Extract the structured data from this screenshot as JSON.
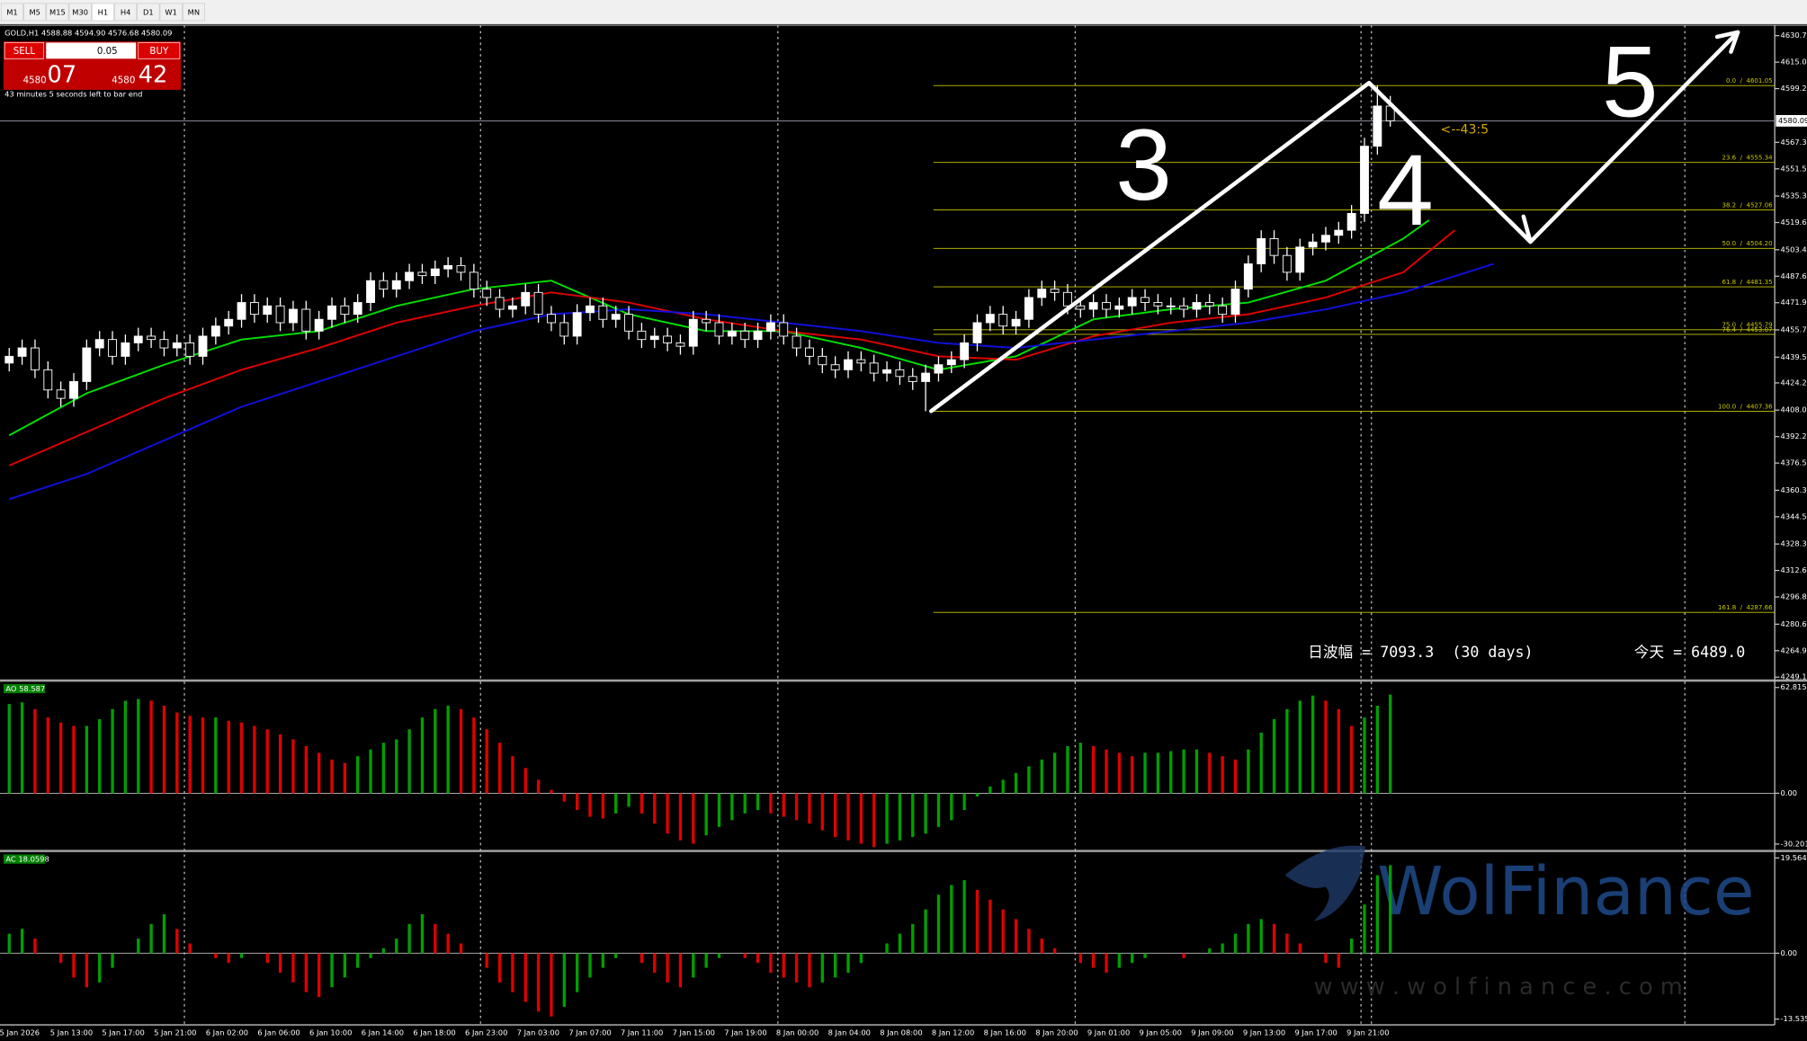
{
  "toolbar": {
    "timeframes": [
      "M1",
      "M5",
      "M15",
      "M30",
      "H1",
      "H4",
      "D1",
      "W1",
      "MN"
    ]
  },
  "trade_panel": {
    "sell": "SELL",
    "lot": "0.05",
    "buy": "BUY",
    "bid_big": "4580",
    "bid_small": "07",
    "ask_big": "4580",
    "ask_small": "42",
    "timer": "43 minutes 5 seconds left to bar end"
  },
  "watermark": {
    "name": "WolFinance",
    "url": "w w w . w o l f i n a n c e . c o m"
  },
  "chart_data": [
    {
      "type": "candlestick",
      "title": "GOLD,H1 4588.88 4594.90 4576.68 4580.09",
      "x_labels": [
        "5 Jan 2026",
        "5 Jan 13:00",
        "5 Jan 17:00",
        "5 Jan 21:00",
        "6 Jan 02:00",
        "6 Jan 06:00",
        "6 Jan 10:00",
        "6 Jan 14:00",
        "6 Jan 18:00",
        "6 Jan 23:00",
        "7 Jan 03:00",
        "7 Jan 07:00",
        "7 Jan 11:00",
        "7 Jan 15:00",
        "7 Jan 19:00",
        "8 Jan 00:00",
        "8 Jan 04:00",
        "8 Jan 08:00",
        "8 Jan 12:00",
        "8 Jan 16:00",
        "8 Jan 20:00",
        "9 Jan 01:00",
        "9 Jan 05:00",
        "9 Jan 09:00",
        "9 Jan 13:00",
        "9 Jan 17:00",
        "9 Jan 21:00"
      ],
      "open": [
        4436,
        4440,
        4445,
        4432,
        4420,
        4415,
        4425,
        4445,
        4450,
        4440,
        4448,
        4452,
        4450,
        4445,
        4448,
        4440,
        4452,
        4458,
        4462,
        4472,
        4465,
        4470,
        4460,
        4468,
        4455,
        4462,
        4470,
        4465,
        4472,
        4485,
        4480,
        4485,
        4490,
        4488,
        4492,
        4494,
        4490,
        4480,
        4475,
        4468,
        4470,
        4478,
        4465,
        4460,
        4452,
        4466,
        4470,
        4462,
        4465,
        4455,
        4450,
        4452,
        4448,
        4446,
        4462,
        4460,
        4452,
        4455,
        4450,
        4455,
        4460,
        4452,
        4445,
        4440,
        4435,
        4432,
        4438,
        4436,
        4430,
        4432,
        4428,
        4425,
        4430,
        4435,
        4438,
        4448,
        4460,
        4465,
        4458,
        4462,
        4475,
        4480,
        4478,
        4470,
        4468,
        4472,
        4468,
        4470,
        4475,
        4472,
        4470,
        4470,
        4468,
        4472,
        4470,
        4465,
        4480,
        4495,
        4510,
        4500,
        4490,
        4505,
        4508,
        4512,
        4515,
        4525,
        4565,
        4588.88
      ],
      "high": [
        4445,
        4450,
        4450,
        4437,
        4425,
        4430,
        4450,
        4455,
        4455,
        4453,
        4457,
        4457,
        4455,
        4453,
        4453,
        4457,
        4463,
        4467,
        4477,
        4477,
        4475,
        4475,
        4473,
        4473,
        4467,
        4475,
        4475,
        4477,
        4490,
        4490,
        4490,
        4495,
        4495,
        4497,
        4499,
        4499,
        4495,
        4485,
        4480,
        4475,
        4483,
        4483,
        4470,
        4465,
        4471,
        4475,
        4475,
        4470,
        4470,
        4460,
        4457,
        4457,
        4453,
        4467,
        4467,
        4465,
        4460,
        4460,
        4460,
        4465,
        4465,
        4457,
        4450,
        4445,
        4440,
        4443,
        4443,
        4441,
        4437,
        4437,
        4433,
        4435,
        4440,
        4443,
        4453,
        4465,
        4470,
        4470,
        4467,
        4480,
        4485,
        4485,
        4483,
        4475,
        4477,
        4477,
        4475,
        4480,
        4480,
        4477,
        4475,
        4475,
        4477,
        4477,
        4475,
        4485,
        4500,
        4515,
        4515,
        4505,
        4510,
        4513,
        4517,
        4520,
        4530,
        4570,
        4601.05,
        4594.9
      ],
      "low": [
        4431,
        4435,
        4427,
        4415,
        4410,
        4410,
        4420,
        4440,
        4435,
        4435,
        4443,
        4445,
        4440,
        4440,
        4435,
        4435,
        4447,
        4453,
        4457,
        4460,
        4460,
        4455,
        4455,
        4450,
        4450,
        4457,
        4460,
        4460,
        4467,
        4475,
        4475,
        4480,
        4483,
        4483,
        4487,
        4485,
        4475,
        4470,
        4463,
        4463,
        4465,
        4460,
        4455,
        4447,
        4447,
        4461,
        4457,
        4457,
        4450,
        4445,
        4445,
        4443,
        4441,
        4441,
        4455,
        4447,
        4447,
        4445,
        4445,
        4450,
        4447,
        4440,
        4435,
        4430,
        4427,
        4427,
        4431,
        4425,
        4425,
        4423,
        4420,
        4407.36,
        4425,
        4430,
        4433,
        4443,
        4455,
        4453,
        4453,
        4457,
        4470,
        4473,
        4465,
        4463,
        4463,
        4463,
        4463,
        4465,
        4467,
        4465,
        4465,
        4463,
        4463,
        4465,
        4460,
        4460,
        4475,
        4490,
        4495,
        4485,
        4485,
        4500,
        4503,
        4507,
        4510,
        4520,
        4560,
        4576.68
      ],
      "close": [
        4440,
        4445,
        4432,
        4420,
        4415,
        4425,
        4445,
        4450,
        4440,
        4448,
        4452,
        4450,
        4445,
        4448,
        4440,
        4452,
        4458,
        4462,
        4472,
        4465,
        4470,
        4460,
        4468,
        4455,
        4462,
        4470,
        4465,
        4472,
        4485,
        4480,
        4485,
        4490,
        4488,
        4492,
        4494,
        4490,
        4480,
        4475,
        4468,
        4470,
        4478,
        4465,
        4460,
        4452,
        4466,
        4470,
        4462,
        4465,
        4455,
        4450,
        4452,
        4448,
        4446,
        4462,
        4460,
        4452,
        4455,
        4450,
        4455,
        4460,
        4452,
        4445,
        4440,
        4435,
        4432,
        4438,
        4436,
        4430,
        4432,
        4428,
        4425,
        4430,
        4435,
        4438,
        4448,
        4460,
        4465,
        4458,
        4462,
        4475,
        4480,
        4478,
        4470,
        4468,
        4472,
        4468,
        4470,
        4475,
        4472,
        4470,
        4470,
        4468,
        4472,
        4470,
        4465,
        4480,
        4495,
        4510,
        4500,
        4490,
        4505,
        4508,
        4512,
        4515,
        4525,
        4565,
        4588.88,
        4580.09
      ],
      "up_color": "#ffffff",
      "down_color": "#000000",
      "wick_color": "#ffffff",
      "series": [
        {
          "color": "#00e000",
          "x": [
            0,
            6,
            12,
            18,
            24,
            30,
            36,
            42,
            48,
            54,
            60,
            66,
            72,
            78,
            84,
            90,
            96,
            102,
            108,
            110
          ],
          "values": [
            4393,
            4418,
            4435,
            4450,
            4455,
            4470,
            4480,
            4485,
            4465,
            4455,
            4455,
            4445,
            4432,
            4440,
            4462,
            4468,
            4472,
            4485,
            4510,
            4521
          ]
        },
        {
          "color": "#e00000",
          "x": [
            0,
            6,
            12,
            18,
            24,
            30,
            36,
            42,
            48,
            54,
            60,
            66,
            72,
            78,
            84,
            90,
            96,
            102,
            108,
            112
          ],
          "values": [
            4375,
            4395,
            4415,
            4432,
            4445,
            4460,
            4470,
            4478,
            4472,
            4462,
            4455,
            4450,
            4440,
            4438,
            4452,
            4460,
            4465,
            4475,
            4490,
            4515
          ]
        },
        {
          "color": "#1010e0",
          "x": [
            0,
            6,
            12,
            18,
            24,
            30,
            36,
            42,
            48,
            54,
            60,
            66,
            72,
            78,
            84,
            90,
            96,
            102,
            108,
            115
          ],
          "values": [
            4355,
            4370,
            4390,
            4410,
            4425,
            4440,
            4455,
            4465,
            4468,
            4465,
            4460,
            4455,
            4448,
            4445,
            4450,
            4455,
            4460,
            4468,
            4478,
            4495
          ]
        }
      ],
      "fibonacci": [
        {
          "value": 4601.05,
          "label": "0.0  /  4601.05"
        },
        {
          "value": 4555.34,
          "label": "23.6  /  4555.34"
        },
        {
          "value": 4527.06,
          "label": "38.2  /  4527.06"
        },
        {
          "value": 4504.2,
          "label": "50.0  /  4504.20"
        },
        {
          "value": 4481.35,
          "label": "61.8  /  4481.35"
        },
        {
          "value": 4455.79,
          "label": "75.0  /  4455.79"
        },
        {
          "value": 4453.07,
          "label": "76.4  /  4453.07"
        },
        {
          "value": 4407.36,
          "label": "100.0  /  4407.36"
        },
        {
          "value": 4287.66,
          "label": "161.8  /  4287.66"
        }
      ],
      "fib_color": "#c8c800",
      "last_price": 4580.09,
      "annotations": {
        "wave_3": "3",
        "wave_4": "4",
        "wave_5": "5",
        "pointer": "<--43:5",
        "range": "日波幅 = 7093.3  (30 days)",
        "today": "今天 = 6489.0"
      },
      "ylim": [
        4247.8,
        4636.9
      ],
      "yticks": [
        {
          "value": 4630.75,
          "label": "4630.75"
        },
        {
          "value": 4615,
          "label": "4615.00"
        },
        {
          "value": 4599.25,
          "label": "4599.25"
        },
        {
          "value": 4567.3,
          "label": "4567.30"
        },
        {
          "value": 4551.55,
          "label": "4551.55"
        },
        {
          "value": 4535.35,
          "label": "4535.35"
        },
        {
          "value": 4519.6,
          "label": "4519.60"
        },
        {
          "value": 4503.4,
          "label": "4503.40"
        },
        {
          "value": 4487.65,
          "label": "4487.65"
        },
        {
          "value": 4471.9,
          "label": "4471.90"
        },
        {
          "value": 4455.7,
          "label": "4455.70"
        },
        {
          "value": 4439.5,
          "label": "4439.50"
        },
        {
          "value": 4424.2,
          "label": "4424.20"
        },
        {
          "value": 4408,
          "label": "4408.00"
        },
        {
          "value": 4392.25,
          "label": "4392.25"
        },
        {
          "value": 4376.5,
          "label": "4376.50"
        },
        {
          "value": 4360.3,
          "label": "4360.30"
        },
        {
          "value": 4344.55,
          "label": "4344.55"
        },
        {
          "value": 4328.35,
          "label": "4328.35"
        },
        {
          "value": 4312.6,
          "label": "4312.60"
        },
        {
          "value": 4296.85,
          "label": "4296.85"
        },
        {
          "value": 4280.65,
          "label": "4280.65"
        },
        {
          "value": 4264.9,
          "label": "4264.90"
        },
        {
          "value": 4249.15,
          "label": "4249.15"
        }
      ]
    },
    {
      "type": "bar",
      "title": "AO 58.587",
      "values": [
        53,
        54,
        50,
        45,
        42,
        40,
        40,
        44,
        50,
        55,
        56,
        55,
        52,
        48,
        46,
        45,
        45,
        43,
        42,
        40,
        38,
        35,
        32,
        28,
        24,
        20,
        18,
        22,
        26,
        30,
        32,
        38,
        45,
        50,
        52,
        50,
        45,
        38,
        30,
        22,
        15,
        8,
        2,
        -5,
        -10,
        -14,
        -15,
        -12,
        -8,
        -12,
        -18,
        -24,
        -28,
        -30,
        -25,
        -20,
        -16,
        -12,
        -10,
        -12,
        -14,
        -16,
        -18,
        -22,
        -26,
        -28,
        -30,
        -32,
        -30,
        -28,
        -26,
        -24,
        -20,
        -16,
        -10,
        -2,
        4,
        8,
        12,
        16,
        20,
        24,
        28,
        30,
        28,
        26,
        24,
        22,
        24,
        24,
        25,
        26,
        26,
        24,
        22,
        20,
        26,
        36,
        44,
        50,
        55,
        58,
        55,
        50,
        40,
        45,
        52,
        58.587
      ],
      "up_color": "#00a000",
      "down_color": "#e00000",
      "ylim": [
        -33.62,
        66.24
      ],
      "yticks": [
        62.815,
        {
          "value": 0,
          "label": "0.00"
        },
        -30.201
      ]
    },
    {
      "type": "bar",
      "title": "AC 18.0598",
      "values": [
        4,
        5,
        3,
        0,
        -2,
        -5,
        -7,
        -6,
        -3,
        0,
        3,
        6,
        8,
        5,
        2,
        0,
        -1,
        -2,
        -1,
        0,
        -2,
        -4,
        -6,
        -8,
        -9,
        -7,
        -5,
        -3,
        -1,
        1,
        3,
        6,
        8,
        6,
        4,
        2,
        0,
        -3,
        -6,
        -8,
        -10,
        -12,
        -13,
        -11,
        -8,
        -5,
        -3,
        -1,
        0,
        -2,
        -4,
        -6,
        -7,
        -5,
        -3,
        -1,
        0,
        -1,
        -2,
        -4,
        -5,
        -6,
        -7,
        -6,
        -5,
        -4,
        -2,
        0,
        2,
        4,
        6,
        9,
        12,
        14,
        15,
        13,
        11,
        9,
        7,
        5,
        3,
        1,
        0,
        -2,
        -3,
        -4,
        -3,
        -2,
        -1,
        0,
        0,
        -1,
        0,
        1,
        2,
        4,
        6,
        7,
        6,
        4,
        2,
        0,
        -2,
        -3,
        3,
        10,
        16,
        18.0598
      ],
      "up_color": "#00a000",
      "down_color": "#e00000",
      "ylim": [
        -14.72,
        20.75
      ],
      "yticks": [
        19.5644,
        {
          "value": 0,
          "label": "0.00"
        },
        -13.5353
      ]
    }
  ]
}
